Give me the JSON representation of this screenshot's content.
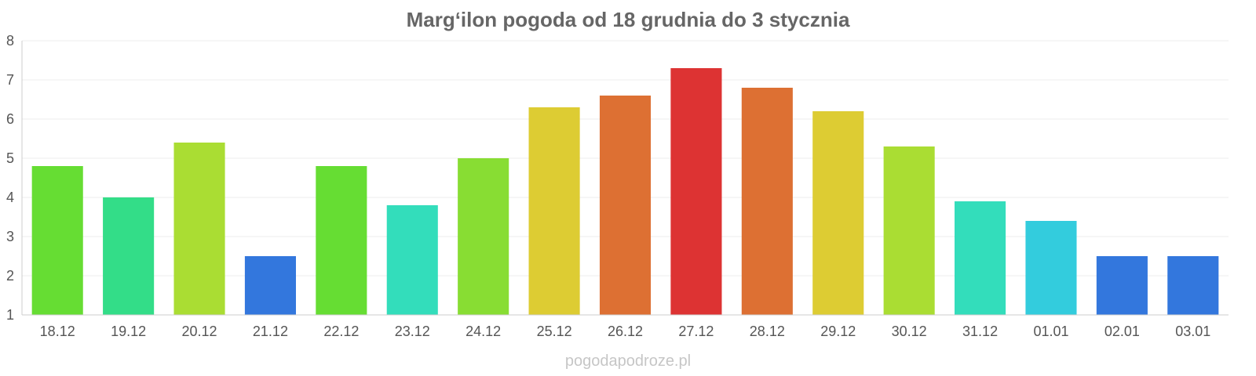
{
  "chart_data": {
    "type": "bar",
    "title": "Marg‘ilon pogoda od 18 grudnia do 3 stycznia",
    "xlabel": "",
    "ylabel": "",
    "ylim": [
      1,
      8
    ],
    "yticks": [
      "1",
      "2",
      "3",
      "4",
      "5",
      "6",
      "7",
      "8"
    ],
    "grid": true,
    "legend": "none",
    "categories": [
      "18.12",
      "19.12",
      "20.12",
      "21.12",
      "22.12",
      "23.12",
      "24.12",
      "25.12",
      "26.12",
      "27.12",
      "28.12",
      "29.12",
      "30.12",
      "31.12",
      "01.01",
      "02.01",
      "03.01"
    ],
    "values": [
      4.8,
      4.0,
      5.4,
      2.5,
      4.8,
      3.8,
      5.0,
      6.3,
      6.6,
      7.3,
      6.8,
      6.2,
      5.3,
      3.9,
      3.4,
      2.5,
      2.5
    ],
    "colors": [
      "#66dd33",
      "#33dd88",
      "#aadd33",
      "#3377dd",
      "#66dd33",
      "#33ddbb",
      "#88dd33",
      "#ddcc33",
      "#dd7033",
      "#dd3333",
      "#dd7033",
      "#ddcc33",
      "#aadd33",
      "#33ddbb",
      "#33ccdd",
      "#3377dd",
      "#3377dd"
    ]
  },
  "watermark": "pogodapodroze.pl"
}
